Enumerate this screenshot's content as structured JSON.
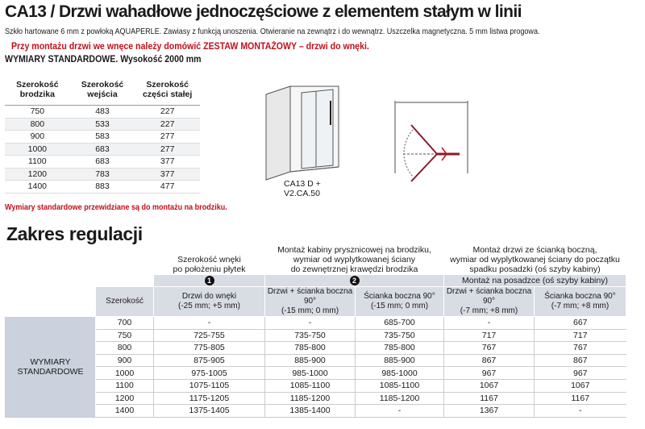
{
  "header": {
    "title": "CA13 / Drzwi wahadłowe jednoczęściowe z elementem stałym w linii",
    "description": "Szkło hartowane 6 mm z powłoką AQUAPERLE. Zawiasy z funkcją unoszenia. Otwieranie na zewnątrz i do wewnątrz. Uszczelka magnetyczna. 5 mm listwa progowa.",
    "warning": "Przy montażu drzwi we wnęce należy domówić ZESTAW MONTAŻOWY – drzwi do wnęki."
  },
  "standard": {
    "heading": "WYMIARY STANDARDOWE. Wysokość 2000 mm",
    "columns": [
      "Szerokość\nbrodzika",
      "Szerokość\nwejścia",
      "Szerokość\nczęści stałej"
    ],
    "rows": [
      [
        "750",
        "483",
        "227"
      ],
      [
        "800",
        "533",
        "227"
      ],
      [
        "900",
        "583",
        "277"
      ],
      [
        "1000",
        "683",
        "277"
      ],
      [
        "1100",
        "683",
        "377"
      ],
      [
        "1200",
        "783",
        "377"
      ],
      [
        "1400",
        "883",
        "477"
      ]
    ],
    "note": "Wymiary standardowe przewidziane są do montażu na brodziku."
  },
  "diagram": {
    "label": "CA13 D +\nV2.CA.50"
  },
  "regulation": {
    "heading": "Zakres regulacji",
    "groups": [
      "Szerokość wnęki\npo położeniu płytek",
      "Montaż kabiny prysznicowej na brodziku,\nwymiar od wyplytkowanej ściany\ndo zewnętrznej krawędzi brodzika",
      "Montaż drzwi ze ścianką boczną,\nwymiar od wyplytkowanej ściany do początku\nspadku posadzki (oś szyby kabiny)"
    ],
    "badges": [
      "1",
      "2"
    ],
    "subheader": "Montaż na posadzce (oś szyby kabiny)",
    "columns": [
      "Szerokość",
      "Drzwi do wnęki\n(-25 mm; +5 mm)",
      "Drzwi + ścianka boczna 90°\n(-15 mm; 0 mm)",
      "Ścianka boczna 90°\n(-15 mm; 0 mm)",
      "Drzwi + ścianka boczna 90°\n(-7 mm; +8 mm)",
      "Ścianka boczna 90°\n(-7 mm; +8 mm)"
    ],
    "row_label": "WYMIARY\nSTANDARDOWE",
    "rows": [
      [
        "700",
        "-",
        "-",
        "685-700",
        "-",
        "667"
      ],
      [
        "750",
        "725-755",
        "735-750",
        "735-750",
        "717",
        "717"
      ],
      [
        "800",
        "775-805",
        "785-800",
        "785-800",
        "767",
        "767"
      ],
      [
        "900",
        "875-905",
        "885-900",
        "885-900",
        "867",
        "867"
      ],
      [
        "1000",
        "975-1005",
        "985-1000",
        "985-1000",
        "967",
        "967"
      ],
      [
        "1100",
        "1075-1105",
        "1085-1100",
        "1085-1100",
        "1067",
        "1067"
      ],
      [
        "1200",
        "1175-1205",
        "1185-1200",
        "1185-1200",
        "1167",
        "1167"
      ],
      [
        "1400",
        "1375-1405",
        "1385-1400",
        "-",
        "1367",
        "-"
      ]
    ]
  }
}
